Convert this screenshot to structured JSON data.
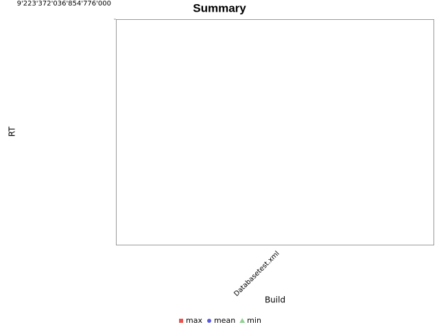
{
  "chart_data": {
    "type": "line",
    "title": "Summary",
    "x_label": "Build",
    "y_label": "RT",
    "categories": [
      "Databasetest.xml"
    ],
    "series": [
      {
        "name": "max",
        "color": "#e8524f",
        "marker": "square",
        "values": [
          null
        ]
      },
      {
        "name": "mean",
        "color": "#5a5ae0",
        "marker": "circle",
        "values": [
          null
        ]
      },
      {
        "name": "min",
        "color": "#90d090",
        "marker": "triangle",
        "values": [
          null
        ]
      }
    ],
    "ylim": [
      0,
      9223372036854776000
    ],
    "yticks": [
      {
        "value": 9223372036854776000,
        "label": "9'223'372'036'854'776'000"
      }
    ],
    "legend": "bottom"
  }
}
